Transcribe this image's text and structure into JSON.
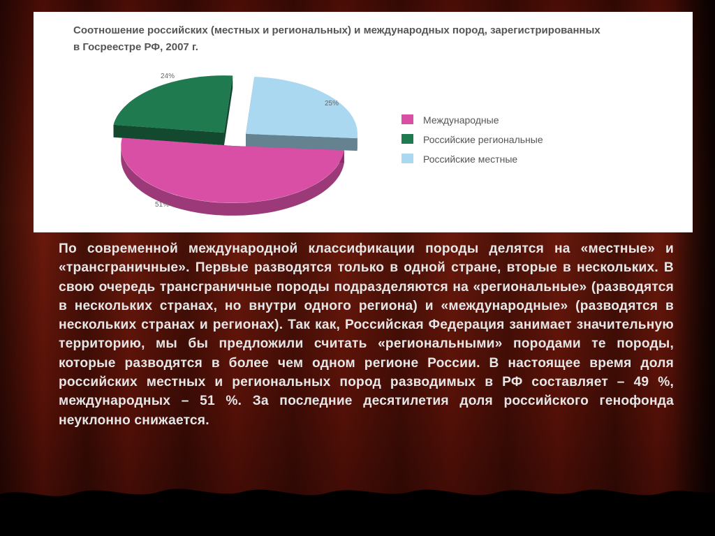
{
  "chart_data": {
    "type": "pie",
    "title": "Соотношение российских (местных и региональных) и международных пород, зарегистрированных в Госреестре РФ, 2007 г.",
    "slices": [
      {
        "name": "Международные",
        "value": 51,
        "label": "51%",
        "color": "#d94fa6"
      },
      {
        "name": "Российские региональные",
        "value": 24,
        "label": "24%",
        "color": "#1f7a4f"
      },
      {
        "name": "Российские местные",
        "value": 25,
        "label": "25%",
        "color": "#a9d8f0"
      }
    ],
    "legend_position": "right"
  },
  "slide": {
    "body_text": "По современной международной классификации породы делятся на «местные» и «трансграничные». Первые разводятся только в одной стране, вторые в нескольких. В свою очередь трансграничные породы подразделяются на «региональные» (разводятся в нескольких странах, но внутри одного региона) и «международные» (разводятся в нескольких странах и регионах). Так как, Российская Федерация занимает значительную территорию, мы бы предложили считать «региональными» породами те породы, которые разводятся в более чем одном регионе России. В настоящее время доля российских местных и региональных пород разводимых в РФ составляет – 49 %, международных – 51 %. За последние десятилетия доля российского генофонда неуклонно снижается."
  }
}
